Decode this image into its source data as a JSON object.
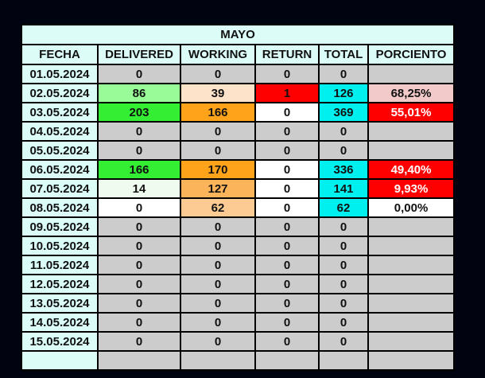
{
  "title": "MAYO",
  "headers": [
    "FECHA",
    "DELIVERED",
    "WORKING",
    "RETURN",
    "TOTAL",
    "PORCIENTO"
  ],
  "rows": [
    {
      "fecha": "01.05.2024",
      "delivered": "0",
      "working": "0",
      "return": "0",
      "total": "0",
      "porciento": "",
      "colors": {
        "delivered": "#cccccc",
        "working": "#cccccc",
        "return": "#cccccc",
        "total": "#cccccc",
        "porciento": "#cccccc"
      }
    },
    {
      "fecha": "02.05.2024",
      "delivered": "86",
      "working": "39",
      "return": "1",
      "total": "126",
      "porciento": "68,25%",
      "colors": {
        "delivered": "#98fb98",
        "working": "#fde3c9",
        "return": "#ff0000",
        "total": "#00f0f0",
        "porciento": "#f3caca"
      }
    },
    {
      "fecha": "03.05.2024",
      "delivered": "203",
      "working": "166",
      "return": "0",
      "total": "369",
      "porciento": "55,01%",
      "colors": {
        "delivered": "#33ee33",
        "working": "#ffa31a",
        "return": "#ffffff",
        "total": "#00f0f0",
        "porciento": "#ff0000"
      }
    },
    {
      "fecha": "04.05.2024",
      "delivered": "0",
      "working": "0",
      "return": "0",
      "total": "0",
      "porciento": "",
      "colors": {
        "delivered": "#cccccc",
        "working": "#cccccc",
        "return": "#cccccc",
        "total": "#cccccc",
        "porciento": "#cccccc"
      }
    },
    {
      "fecha": "05.05.2024",
      "delivered": "0",
      "working": "0",
      "return": "0",
      "total": "0",
      "porciento": "",
      "colors": {
        "delivered": "#cccccc",
        "working": "#cccccc",
        "return": "#cccccc",
        "total": "#cccccc",
        "porciento": "#cccccc"
      }
    },
    {
      "fecha": "06.05.2024",
      "delivered": "166",
      "working": "170",
      "return": "0",
      "total": "336",
      "porciento": "49,40%",
      "colors": {
        "delivered": "#33ee33",
        "working": "#ffa31a",
        "return": "#ffffff",
        "total": "#00f0f0",
        "porciento": "#ff0000"
      }
    },
    {
      "fecha": "07.05.2024",
      "delivered": "14",
      "working": "127",
      "return": "0",
      "total": "141",
      "porciento": "9,93%",
      "colors": {
        "delivered": "#effbef",
        "working": "#fcb45a",
        "return": "#ffffff",
        "total": "#00f0f0",
        "porciento": "#ff0000"
      }
    },
    {
      "fecha": "08.05.2024",
      "delivered": "0",
      "working": "62",
      "return": "0",
      "total": "62",
      "porciento": "0,00%",
      "colors": {
        "delivered": "#ffffff",
        "working": "#fccb93",
        "return": "#ffffff",
        "total": "#00f0f0",
        "porciento": "#ffffff"
      }
    },
    {
      "fecha": "09.05.2024",
      "delivered": "0",
      "working": "0",
      "return": "0",
      "total": "0",
      "porciento": "",
      "colors": {
        "delivered": "#cccccc",
        "working": "#cccccc",
        "return": "#cccccc",
        "total": "#cccccc",
        "porciento": "#cccccc"
      }
    },
    {
      "fecha": "10.05.2024",
      "delivered": "0",
      "working": "0",
      "return": "0",
      "total": "0",
      "porciento": "",
      "colors": {
        "delivered": "#cccccc",
        "working": "#cccccc",
        "return": "#cccccc",
        "total": "#cccccc",
        "porciento": "#cccccc"
      }
    },
    {
      "fecha": "11.05.2024",
      "delivered": "0",
      "working": "0",
      "return": "0",
      "total": "0",
      "porciento": "",
      "colors": {
        "delivered": "#cccccc",
        "working": "#cccccc",
        "return": "#cccccc",
        "total": "#cccccc",
        "porciento": "#cccccc"
      }
    },
    {
      "fecha": "12.05.2024",
      "delivered": "0",
      "working": "0",
      "return": "0",
      "total": "0",
      "porciento": "",
      "colors": {
        "delivered": "#cccccc",
        "working": "#cccccc",
        "return": "#cccccc",
        "total": "#cccccc",
        "porciento": "#cccccc"
      }
    },
    {
      "fecha": "13.05.2024",
      "delivered": "0",
      "working": "0",
      "return": "0",
      "total": "0",
      "porciento": "",
      "colors": {
        "delivered": "#cccccc",
        "working": "#cccccc",
        "return": "#cccccc",
        "total": "#cccccc",
        "porciento": "#cccccc"
      }
    },
    {
      "fecha": "14.05.2024",
      "delivered": "0",
      "working": "0",
      "return": "0",
      "total": "0",
      "porciento": "",
      "colors": {
        "delivered": "#cccccc",
        "working": "#cccccc",
        "return": "#cccccc",
        "total": "#cccccc",
        "porciento": "#cccccc"
      }
    },
    {
      "fecha": "15.05.2024",
      "delivered": "0",
      "working": "0",
      "return": "0",
      "total": "0",
      "porciento": "",
      "colors": {
        "delivered": "#cccccc",
        "working": "#cccccc",
        "return": "#cccccc",
        "total": "#cccccc",
        "porciento": "#cccccc"
      }
    },
    {
      "fecha": "",
      "delivered": "",
      "working": "",
      "return": "",
      "total": "",
      "porciento": "",
      "colors": {
        "delivered": "#cccccc",
        "working": "#cccccc",
        "return": "#cccccc",
        "total": "#cccccc",
        "porciento": "#cccccc"
      }
    }
  ],
  "colors": {
    "background": "#010410",
    "header_fill": "#dcfcf8",
    "date_fill": "#dcfcf8",
    "empty_fill": "#cccccc",
    "grid_line": "#000000"
  }
}
